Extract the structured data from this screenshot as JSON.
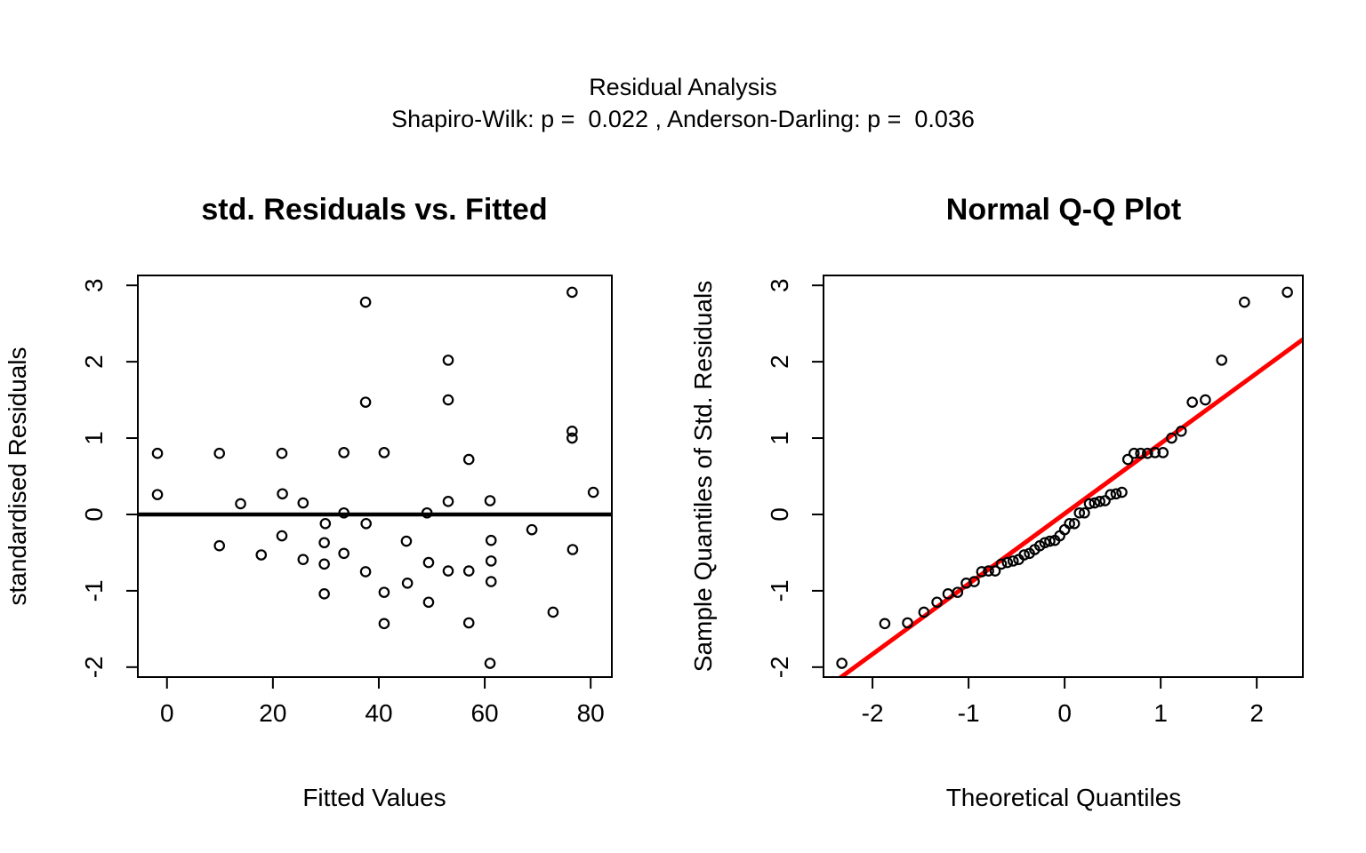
{
  "header": {
    "title": "Residual Analysis",
    "subtitle": "Shapiro-Wilk: p =  0.022 , Anderson-Darling: p =  0.036"
  },
  "colors": {
    "background": "#FFFFFF",
    "foreground": "#000000",
    "reference_line": "#FF0000"
  },
  "chart_data": [
    {
      "type": "scatter",
      "title": "std. Residuals vs. Fitted",
      "xlabel": "Fitted Values",
      "ylabel": "standardised Residuals",
      "xlim": [
        -5.5,
        84.0
      ],
      "ylim": [
        -2.13,
        3.13
      ],
      "xticks": [
        0,
        20,
        40,
        60,
        80
      ],
      "yticks": [
        -2,
        -1,
        0,
        1,
        2,
        3
      ],
      "grid": false,
      "zero_line_y": 0,
      "points": [
        [
          -1.8,
          0.8
        ],
        [
          -1.8,
          0.26
        ],
        [
          9.9,
          0.8
        ],
        [
          9.9,
          -0.41
        ],
        [
          13.9,
          0.14
        ],
        [
          17.8,
          -0.53
        ],
        [
          21.7,
          0.8
        ],
        [
          21.8,
          0.27
        ],
        [
          21.7,
          -0.28
        ],
        [
          25.7,
          0.15
        ],
        [
          25.7,
          -0.59
        ],
        [
          29.9,
          -0.12
        ],
        [
          29.7,
          -0.37
        ],
        [
          29.7,
          -0.65
        ],
        [
          29.7,
          -1.04
        ],
        [
          33.4,
          0.81
        ],
        [
          33.4,
          0.02
        ],
        [
          33.4,
          -0.51
        ],
        [
          37.5,
          2.78
        ],
        [
          37.5,
          1.47
        ],
        [
          37.6,
          -0.12
        ],
        [
          37.5,
          -0.75
        ],
        [
          41.0,
          0.81
        ],
        [
          41.0,
          -1.02
        ],
        [
          41.0,
          -1.43
        ],
        [
          45.2,
          -0.35
        ],
        [
          45.4,
          -0.9
        ],
        [
          49.1,
          0.02
        ],
        [
          49.4,
          -0.63
        ],
        [
          49.4,
          -1.15
        ],
        [
          53.1,
          2.02
        ],
        [
          53.1,
          1.5
        ],
        [
          53.1,
          0.17
        ],
        [
          53.1,
          -0.74
        ],
        [
          57.0,
          0.72
        ],
        [
          57.0,
          -0.74
        ],
        [
          57.0,
          -1.42
        ],
        [
          61.0,
          0.18
        ],
        [
          61.2,
          -0.34
        ],
        [
          61.2,
          -0.61
        ],
        [
          61.2,
          -0.88
        ],
        [
          61.0,
          -1.95
        ],
        [
          68.9,
          -0.2
        ],
        [
          72.9,
          -1.28
        ],
        [
          76.5,
          2.91
        ],
        [
          76.5,
          1.09
        ],
        [
          76.5,
          1.0
        ],
        [
          76.6,
          -0.46
        ],
        [
          80.5,
          0.29
        ]
      ]
    },
    {
      "type": "scatter",
      "title": "Normal Q-Q Plot",
      "xlabel": "Theoretical Quantiles",
      "ylabel": "Sample Quantiles of Std. Residuals",
      "xlim": [
        -2.51,
        2.48
      ],
      "ylim": [
        -2.13,
        3.13
      ],
      "xticks": [
        -2,
        -1,
        0,
        1,
        2
      ],
      "yticks": [
        -2,
        -1,
        0,
        1,
        2,
        3
      ],
      "grid": false,
      "reference_line": {
        "intercept": 0.01,
        "slope": 0.92,
        "color": "#FF0000"
      },
      "points": [
        [
          -2.319,
          -1.95
        ],
        [
          -1.872,
          -1.43
        ],
        [
          -1.635,
          -1.42
        ],
        [
          -1.465,
          -1.28
        ],
        [
          -1.329,
          -1.15
        ],
        [
          -1.214,
          -1.04
        ],
        [
          -1.114,
          -1.02
        ],
        [
          -1.024,
          -0.9
        ],
        [
          -0.941,
          -0.88
        ],
        [
          -0.863,
          -0.75
        ],
        [
          -0.792,
          -0.74
        ],
        [
          -0.723,
          -0.74
        ],
        [
          -0.658,
          -0.65
        ],
        [
          -0.596,
          -0.63
        ],
        [
          -0.536,
          -0.61
        ],
        [
          -0.478,
          -0.59
        ],
        [
          -0.421,
          -0.53
        ],
        [
          -0.366,
          -0.51
        ],
        [
          -0.312,
          -0.46
        ],
        [
          -0.258,
          -0.41
        ],
        [
          -0.206,
          -0.37
        ],
        [
          -0.154,
          -0.35
        ],
        [
          -0.102,
          -0.34
        ],
        [
          -0.051,
          -0.28
        ],
        [
          0.0,
          -0.2
        ],
        [
          0.051,
          -0.12
        ],
        [
          0.102,
          -0.12
        ],
        [
          0.154,
          0.02
        ],
        [
          0.206,
          0.02
        ],
        [
          0.258,
          0.14
        ],
        [
          0.312,
          0.15
        ],
        [
          0.366,
          0.17
        ],
        [
          0.421,
          0.18
        ],
        [
          0.478,
          0.26
        ],
        [
          0.536,
          0.27
        ],
        [
          0.596,
          0.29
        ],
        [
          0.658,
          0.72
        ],
        [
          0.723,
          0.8
        ],
        [
          0.792,
          0.8
        ],
        [
          0.863,
          0.8
        ],
        [
          0.941,
          0.81
        ],
        [
          1.024,
          0.81
        ],
        [
          1.114,
          1.0
        ],
        [
          1.214,
          1.09
        ],
        [
          1.329,
          1.47
        ],
        [
          1.465,
          1.5
        ],
        [
          1.635,
          2.02
        ],
        [
          1.872,
          2.78
        ],
        [
          2.319,
          2.91
        ]
      ]
    }
  ]
}
